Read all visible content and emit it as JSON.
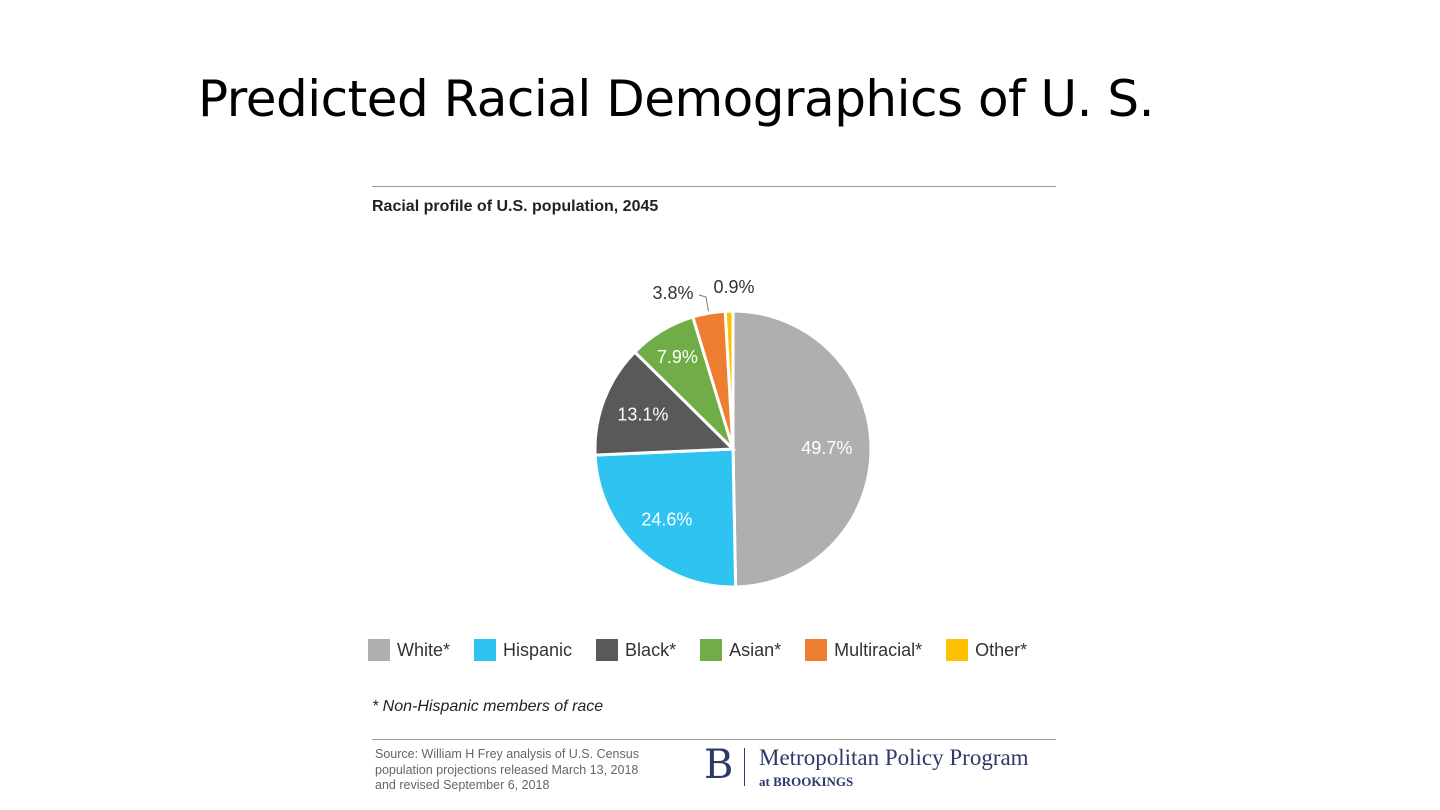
{
  "slide": {
    "title": "Predicted Racial Demographics of U. S."
  },
  "chart_data": {
    "type": "pie",
    "title": "Racial profile of U.S. population, 2045",
    "categories": [
      "White*",
      "Hispanic",
      "Black*",
      "Asian*",
      "Multiracial*",
      "Other*"
    ],
    "values": [
      49.7,
      24.6,
      13.1,
      7.9,
      3.8,
      0.9
    ],
    "labels": [
      "49.7%",
      "24.6%",
      "13.1%",
      "7.9%",
      "3.8%",
      "0.9%"
    ],
    "colors": [
      "#afafaf",
      "#2fc3f2",
      "#595959",
      "#70ad47",
      "#ed7d31",
      "#ffc000"
    ],
    "legend_position": "bottom",
    "footnote": "* Non-Hispanic members of race"
  },
  "source": {
    "lines": [
      "Source: William H Frey analysis of U.S. Census",
      "population projections released March 13, 2018",
      "and revised September 6, 2018"
    ]
  },
  "logo": {
    "mark": "B",
    "name": "Metropolitan Policy Program",
    "sub": "at BROOKINGS"
  }
}
